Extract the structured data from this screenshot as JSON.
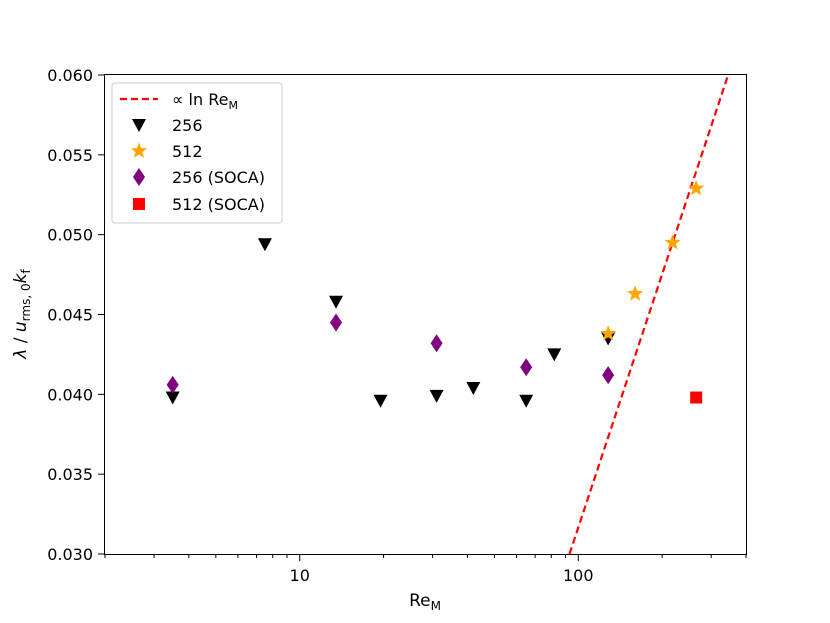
{
  "chart_data": {
    "type": "scatter",
    "xscale": "log",
    "xlim": [
      2,
      400
    ],
    "ylim": [
      0.03,
      0.06
    ],
    "xlabel": {
      "main": "Re",
      "sub": "M"
    },
    "ylabel": {
      "lambda": "λ",
      "slash": " / ",
      "u": "u",
      "u_sub": "rms, 0",
      "k": "k",
      "k_sub": "f"
    },
    "x_ticks": [
      {
        "value": 10,
        "label": "10"
      },
      {
        "value": 100,
        "label": "100"
      }
    ],
    "y_ticks": [
      {
        "value": 0.03,
        "label": "0.030"
      },
      {
        "value": 0.035,
        "label": "0.035"
      },
      {
        "value": 0.04,
        "label": "0.040"
      },
      {
        "value": 0.045,
        "label": "0.045"
      },
      {
        "value": 0.05,
        "label": "0.050"
      },
      {
        "value": 0.055,
        "label": "0.055"
      },
      {
        "value": 0.06,
        "label": "0.060"
      }
    ],
    "legend_position": "top-left",
    "fit_line": {
      "name": "∝ ln Re_M",
      "label_prefix": "∝ ln Re",
      "label_sub": "M",
      "style": "dashed",
      "color": "#ff0000",
      "x": [
        93,
        345
      ],
      "y": [
        0.03,
        0.06
      ]
    },
    "series": [
      {
        "name": "256",
        "marker": "triangle-down",
        "color": "#000000",
        "x": [
          3.5,
          7.5,
          13.5,
          19.5,
          31,
          42,
          65,
          82,
          128
        ],
        "y": [
          0.0398,
          0.0494,
          0.0458,
          0.0396,
          0.0399,
          0.0404,
          0.0396,
          0.0425,
          0.0435
        ]
      },
      {
        "name": "512",
        "marker": "star",
        "color": "#ffa500",
        "x": [
          128,
          160,
          218,
          265
        ],
        "y": [
          0.0438,
          0.0463,
          0.0495,
          0.0529
        ]
      },
      {
        "name": "256 (SOCA)",
        "marker": "thin-diamond",
        "color": "#800080",
        "x": [
          3.5,
          13.5,
          31,
          65,
          128
        ],
        "y": [
          0.0406,
          0.0445,
          0.0432,
          0.0417,
          0.0412
        ]
      },
      {
        "name": "512 (SOCA)",
        "marker": "square",
        "color": "#ff0000",
        "x": [
          265
        ],
        "y": [
          0.0398
        ]
      }
    ]
  }
}
